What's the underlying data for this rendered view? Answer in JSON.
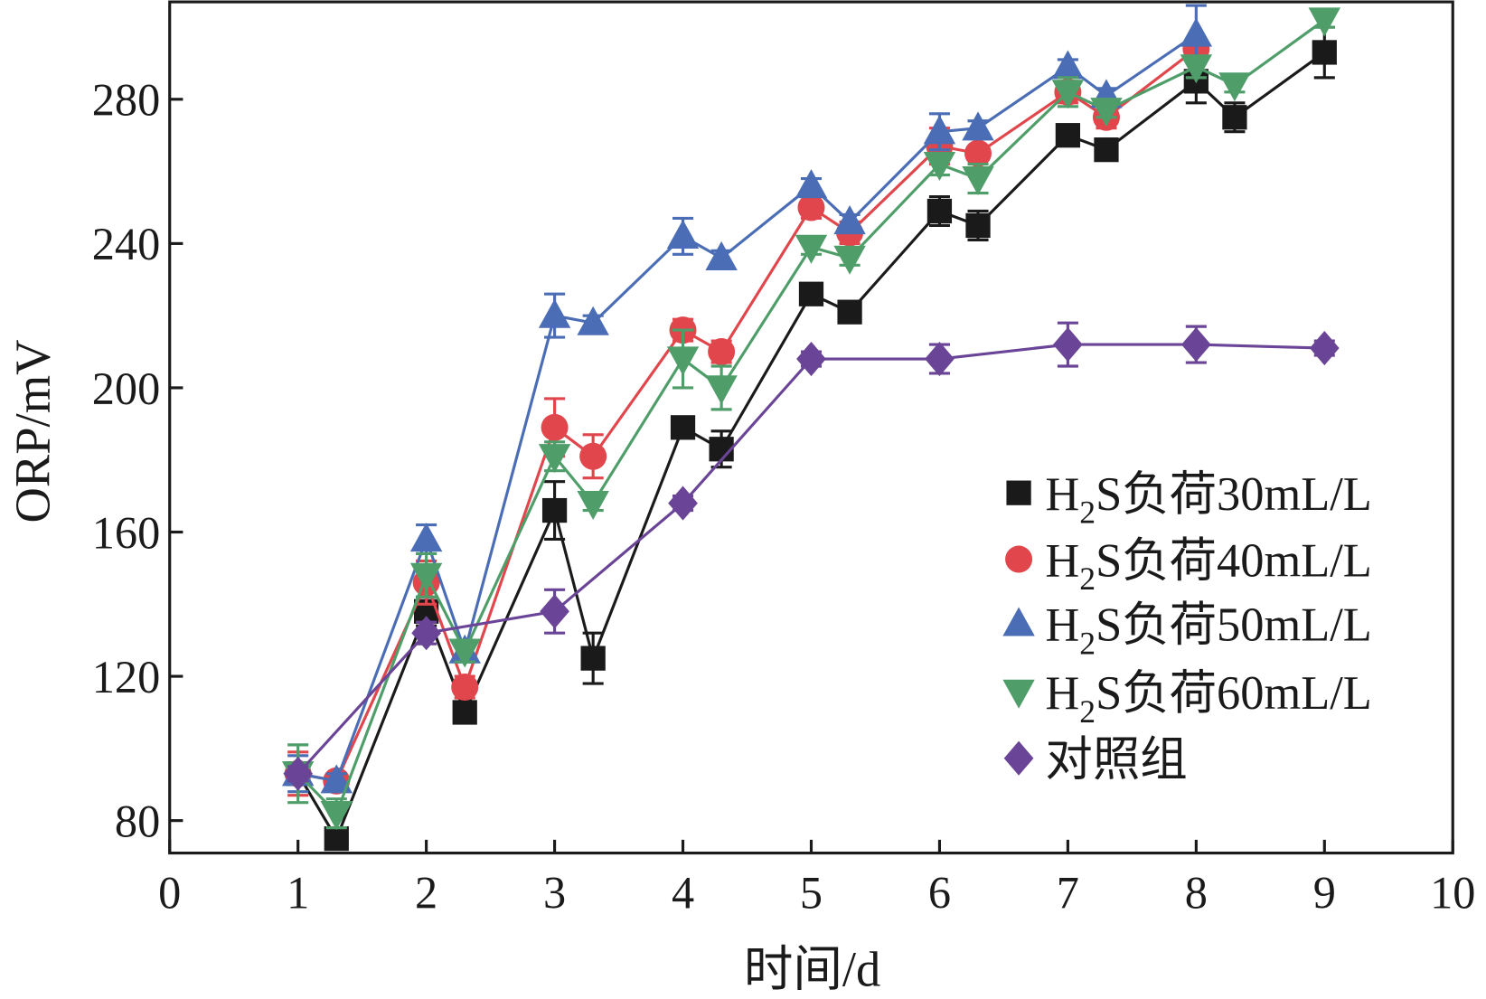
{
  "chart_data": {
    "type": "line",
    "xlabel": "时间/d",
    "ylabel": "ORP/mV",
    "xlim": [
      0,
      10
    ],
    "ylim": [
      71,
      307
    ],
    "xticks": [
      0,
      1,
      2,
      3,
      4,
      5,
      6,
      7,
      8,
      9,
      10
    ],
    "yticks": [
      80,
      120,
      160,
      200,
      240,
      280
    ],
    "grid": false,
    "legend_position": "right-middle",
    "series": [
      {
        "name": "H2S负荷30mL/L",
        "name_parts": [
          "H",
          "2",
          "S负荷30mL/L"
        ],
        "color": "#1a1a1a",
        "marker": "square",
        "x": [
          1,
          1.3,
          2,
          2.3,
          3,
          3.3,
          4,
          4.3,
          5,
          5.3,
          6,
          6.3,
          7,
          7.3,
          8,
          8.3,
          9
        ],
        "y": [
          93,
          75,
          138,
          110,
          166,
          125,
          189,
          183,
          226,
          221,
          249,
          245,
          270,
          266,
          285,
          275,
          293
        ],
        "err": [
          3,
          2,
          4,
          2,
          8,
          7,
          2,
          5,
          2,
          2,
          4,
          4,
          2,
          2,
          6,
          4,
          7
        ]
      },
      {
        "name": "H2S负荷40mL/L",
        "name_parts": [
          "H",
          "2",
          "S负荷40mL/L"
        ],
        "color": "#e0464b",
        "marker": "circle",
        "x": [
          1,
          1.3,
          2,
          2.3,
          3,
          3.3,
          4,
          4.3,
          5,
          5.3,
          6,
          6.3,
          7,
          7.3,
          8
        ],
        "y": [
          93,
          91,
          146,
          117,
          189,
          181,
          216,
          210,
          250,
          243,
          267,
          265,
          282,
          275,
          294
        ],
        "err": [
          6,
          2,
          6,
          3,
          8,
          6,
          3,
          3,
          3,
          3,
          5,
          4,
          3,
          3,
          3
        ]
      },
      {
        "name": "H2S负荷50mL/L",
        "name_parts": [
          "H",
          "2",
          "S负荷50mL/L"
        ],
        "color": "#4a6db5",
        "marker": "triangle-up",
        "x": [
          1,
          1.3,
          2,
          2.3,
          3,
          3.3,
          4,
          4.3,
          5,
          5.3,
          6,
          6.3,
          7,
          7.3,
          8
        ],
        "y": [
          93,
          91,
          158,
          127,
          220,
          218,
          242,
          236,
          256,
          246,
          271,
          272,
          289,
          281,
          298
        ],
        "err": [
          5,
          2,
          4,
          3,
          6,
          2,
          5,
          2,
          2,
          2,
          5,
          2,
          2,
          2,
          8
        ]
      },
      {
        "name": "H2S负荷60mL/L",
        "name_parts": [
          "H",
          "2",
          "S负荷60mL/L"
        ],
        "color": "#4f9e6a",
        "marker": "triangle-down",
        "x": [
          1,
          1.3,
          2,
          2.3,
          3,
          3.3,
          4,
          4.3,
          5,
          5.3,
          6,
          6.3,
          7,
          7.3,
          8,
          8.3,
          9
        ],
        "y": [
          93,
          82,
          148,
          127,
          181,
          168,
          208,
          200,
          239,
          236,
          262,
          258,
          282,
          277,
          289,
          284,
          302
        ],
        "err": [
          8,
          4,
          6,
          3,
          4,
          2,
          8,
          6,
          2,
          2,
          3,
          4,
          4,
          2,
          3,
          2,
          2
        ]
      },
      {
        "name": "对照组",
        "name_parts": [
          "",
          "",
          "对照组"
        ],
        "color": "#6a4496",
        "marker": "diamond",
        "x": [
          1,
          2,
          3,
          4,
          5,
          6,
          7,
          8,
          9
        ],
        "y": [
          93,
          132,
          138,
          168,
          208,
          208,
          212,
          212,
          211
        ],
        "err": [
          2,
          3,
          6,
          2,
          2,
          4,
          6,
          5,
          2
        ]
      }
    ]
  }
}
